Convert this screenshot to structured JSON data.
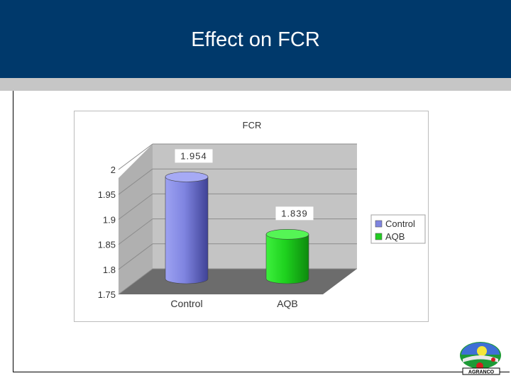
{
  "slide": {
    "title": "Effect on FCR"
  },
  "logo": {
    "text": "AGRANCO"
  },
  "colors": {
    "header": "#00396b",
    "control": "#7f84e0",
    "aqb": "#22cc22",
    "wall": "#bfbfbf",
    "floor": "#6c6c6c"
  },
  "chart_data": {
    "type": "bar",
    "title": "FCR",
    "categories": [
      "Control",
      "AQB"
    ],
    "series": [
      {
        "name": "Control",
        "values": [
          1.954,
          null
        ],
        "color": "#7f84e0"
      },
      {
        "name": "AQB",
        "values": [
          null,
          1.839
        ],
        "color": "#22cc22"
      }
    ],
    "data_labels": [
      "1.954",
      "1.839"
    ],
    "ylim": [
      1.75,
      2
    ],
    "yticks": [
      "1.75",
      "1.8",
      "1.85",
      "1.9",
      "1.95",
      "2"
    ],
    "grid": true,
    "legend": "right",
    "style": "3d-cylinder"
  }
}
